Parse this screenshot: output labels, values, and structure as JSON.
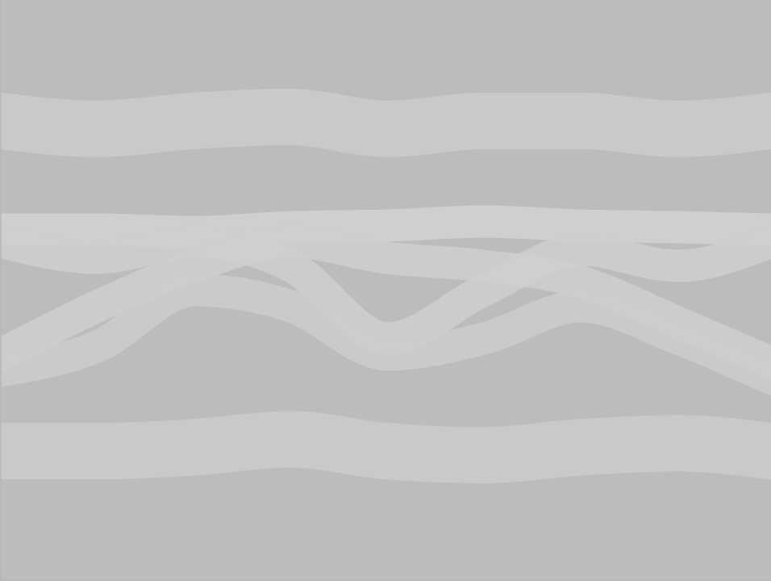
{
  "chart_data": {
    "type": "line",
    "tick_labels": false,
    "grid": false,
    "xlim": [
      0,
      956
    ],
    "ylim": [
      0,
      720
    ],
    "x": [
      0,
      120,
      240,
      360,
      480,
      600,
      720,
      840,
      956
    ],
    "series": [
      {
        "color": "#cbcbcb",
        "values": [
          150,
          160,
          150,
          145,
          160,
          150,
          150,
          160,
          150
        ]
      },
      {
        "color": "#cbcbcb",
        "values": [
          560,
          560,
          555,
          545,
          560,
          565,
          555,
          550,
          560
        ]
      },
      {
        "color": "#d2d2d2",
        "values": [
          285,
          285,
          288,
          282,
          280,
          275,
          280,
          282,
          285
        ]
      },
      {
        "color": "#cfcfcf",
        "values": [
          300,
          320,
          300,
          330,
          420,
          360,
          310,
          330,
          300
        ]
      },
      {
        "color": "#cfcfcf",
        "values": [
          440,
          380,
          330,
          300,
          320,
          330,
          350,
          400,
          450
        ]
      },
      {
        "color": "#cdcdcd",
        "values": [
          460,
          430,
          360,
          380,
          440,
          420,
          380,
          420,
          470
        ]
      }
    ]
  }
}
